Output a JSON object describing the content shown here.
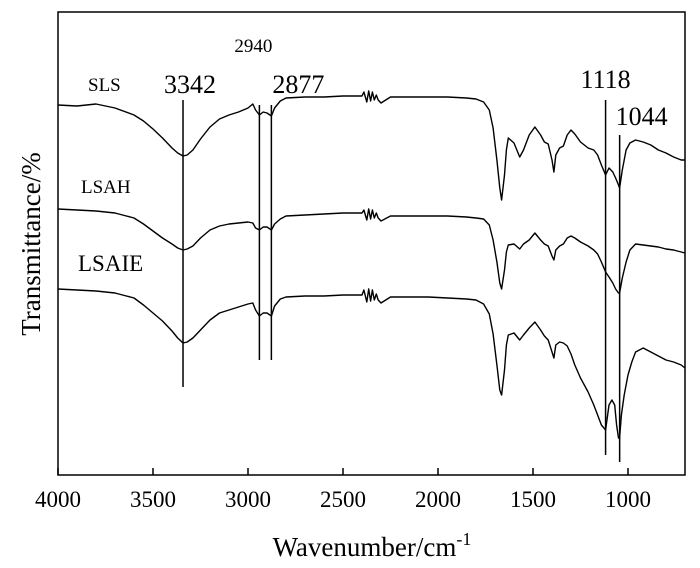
{
  "chart_data": {
    "type": "line",
    "title": "",
    "xlabel": "Wavenumber/cm",
    "xlabel_superscript": "-1",
    "ylabel": "Transmittance/%",
    "xlim": [
      4000,
      700
    ],
    "x_reversed": true,
    "x_ticks": [
      4000,
      3500,
      3000,
      2500,
      2000,
      1500,
      1000
    ],
    "y_ticks_shown": false,
    "grid": false,
    "legend": "labels placed above each curve",
    "line_color": "#000000",
    "series": [
      {
        "name": "SLS",
        "points": [
          [
            4000,
            105
          ],
          [
            3900,
            106
          ],
          [
            3800,
            104
          ],
          [
            3700,
            108
          ],
          [
            3600,
            115
          ],
          [
            3550,
            121
          ],
          [
            3500,
            129
          ],
          [
            3450,
            138
          ],
          [
            3400,
            148
          ],
          [
            3370,
            153
          ],
          [
            3342,
            156
          ],
          [
            3320,
            155
          ],
          [
            3290,
            150
          ],
          [
            3250,
            139
          ],
          [
            3200,
            127
          ],
          [
            3150,
            119
          ],
          [
            3100,
            115
          ],
          [
            3050,
            112
          ],
          [
            3000,
            108
          ],
          [
            2975,
            104
          ],
          [
            2960,
            110
          ],
          [
            2940,
            115
          ],
          [
            2920,
            112
          ],
          [
            2900,
            113
          ],
          [
            2877,
            116
          ],
          [
            2860,
            108
          ],
          [
            2830,
            101
          ],
          [
            2800,
            98
          ],
          [
            2700,
            97
          ],
          [
            2600,
            97
          ],
          [
            2500,
            96
          ],
          [
            2400,
            96
          ],
          [
            2390,
            92
          ],
          [
            2375,
            102
          ],
          [
            2365,
            91
          ],
          [
            2355,
            101
          ],
          [
            2345,
            92
          ],
          [
            2335,
            100
          ],
          [
            2325,
            95
          ],
          [
            2315,
            100
          ],
          [
            2300,
            103
          ],
          [
            2250,
            97
          ],
          [
            2150,
            97
          ],
          [
            2050,
            97
          ],
          [
            1950,
            97
          ],
          [
            1850,
            98
          ],
          [
            1800,
            99
          ],
          [
            1760,
            102
          ],
          [
            1730,
            110
          ],
          [
            1710,
            128
          ],
          [
            1690,
            160
          ],
          [
            1675,
            188
          ],
          [
            1665,
            200
          ],
          [
            1650,
            175
          ],
          [
            1640,
            150
          ],
          [
            1630,
            138
          ],
          [
            1600,
            143
          ],
          [
            1570,
            157
          ],
          [
            1550,
            150
          ],
          [
            1520,
            135
          ],
          [
            1490,
            127
          ],
          [
            1460,
            135
          ],
          [
            1440,
            142
          ],
          [
            1420,
            144
          ],
          [
            1400,
            160
          ],
          [
            1390,
            172
          ],
          [
            1380,
            155
          ],
          [
            1360,
            148
          ],
          [
            1340,
            146
          ],
          [
            1320,
            135
          ],
          [
            1300,
            130
          ],
          [
            1280,
            134
          ],
          [
            1250,
            142
          ],
          [
            1210,
            148
          ],
          [
            1180,
            150
          ],
          [
            1160,
            155
          ],
          [
            1140,
            165
          ],
          [
            1118,
            175
          ],
          [
            1100,
            168
          ],
          [
            1080,
            172
          ],
          [
            1065,
            178
          ],
          [
            1050,
            185
          ],
          [
            1044,
            188
          ],
          [
            1030,
            170
          ],
          [
            1010,
            150
          ],
          [
            990,
            143
          ],
          [
            960,
            140
          ],
          [
            920,
            142
          ],
          [
            880,
            145
          ],
          [
            840,
            150
          ],
          [
            800,
            153
          ],
          [
            760,
            157
          ],
          [
            720,
            160
          ],
          [
            700,
            160
          ]
        ]
      },
      {
        "name": "LSAH",
        "points": [
          [
            4000,
            209
          ],
          [
            3900,
            210
          ],
          [
            3800,
            211
          ],
          [
            3700,
            213
          ],
          [
            3600,
            218
          ],
          [
            3550,
            224
          ],
          [
            3500,
            231
          ],
          [
            3450,
            238
          ],
          [
            3400,
            244
          ],
          [
            3370,
            248
          ],
          [
            3342,
            250
          ],
          [
            3320,
            249
          ],
          [
            3290,
            246
          ],
          [
            3250,
            238
          ],
          [
            3200,
            230
          ],
          [
            3150,
            226
          ],
          [
            3100,
            224
          ],
          [
            3050,
            223
          ],
          [
            3000,
            222
          ],
          [
            2975,
            223
          ],
          [
            2960,
            228
          ],
          [
            2940,
            230
          ],
          [
            2920,
            227
          ],
          [
            2900,
            227
          ],
          [
            2877,
            230
          ],
          [
            2860,
            224
          ],
          [
            2830,
            219
          ],
          [
            2800,
            216
          ],
          [
            2700,
            215
          ],
          [
            2600,
            214
          ],
          [
            2500,
            213
          ],
          [
            2400,
            213
          ],
          [
            2390,
            210
          ],
          [
            2375,
            220
          ],
          [
            2365,
            209
          ],
          [
            2355,
            219
          ],
          [
            2345,
            210
          ],
          [
            2335,
            218
          ],
          [
            2325,
            213
          ],
          [
            2315,
            218
          ],
          [
            2300,
            221
          ],
          [
            2250,
            216
          ],
          [
            2150,
            216
          ],
          [
            2050,
            216
          ],
          [
            1950,
            216
          ],
          [
            1850,
            217
          ],
          [
            1800,
            218
          ],
          [
            1760,
            219
          ],
          [
            1730,
            225
          ],
          [
            1710,
            240
          ],
          [
            1690,
            262
          ],
          [
            1675,
            283
          ],
          [
            1665,
            289
          ],
          [
            1650,
            270
          ],
          [
            1640,
            252
          ],
          [
            1630,
            245
          ],
          [
            1600,
            244
          ],
          [
            1570,
            249
          ],
          [
            1550,
            244
          ],
          [
            1520,
            240
          ],
          [
            1490,
            233
          ],
          [
            1460,
            240
          ],
          [
            1440,
            244
          ],
          [
            1420,
            246
          ],
          [
            1400,
            256
          ],
          [
            1390,
            260
          ],
          [
            1380,
            250
          ],
          [
            1360,
            246
          ],
          [
            1340,
            244
          ],
          [
            1320,
            238
          ],
          [
            1300,
            236
          ],
          [
            1280,
            238
          ],
          [
            1250,
            242
          ],
          [
            1210,
            246
          ],
          [
            1180,
            250
          ],
          [
            1160,
            254
          ],
          [
            1140,
            262
          ],
          [
            1118,
            272
          ],
          [
            1100,
            277
          ],
          [
            1080,
            283
          ],
          [
            1065,
            289
          ],
          [
            1050,
            293
          ],
          [
            1044,
            293
          ],
          [
            1030,
            278
          ],
          [
            1010,
            262
          ],
          [
            990,
            250
          ],
          [
            960,
            244
          ],
          [
            920,
            245
          ],
          [
            880,
            246
          ],
          [
            840,
            247
          ],
          [
            800,
            249
          ],
          [
            760,
            250
          ],
          [
            720,
            252
          ],
          [
            700,
            253
          ]
        ]
      },
      {
        "name": "LSAIE",
        "points": [
          [
            4000,
            289
          ],
          [
            3900,
            290
          ],
          [
            3800,
            291
          ],
          [
            3700,
            293
          ],
          [
            3600,
            298
          ],
          [
            3550,
            305
          ],
          [
            3500,
            313
          ],
          [
            3450,
            321
          ],
          [
            3400,
            331
          ],
          [
            3370,
            338
          ],
          [
            3342,
            343
          ],
          [
            3320,
            342
          ],
          [
            3290,
            338
          ],
          [
            3250,
            330
          ],
          [
            3200,
            320
          ],
          [
            3150,
            313
          ],
          [
            3100,
            310
          ],
          [
            3050,
            307
          ],
          [
            3000,
            304
          ],
          [
            2975,
            303
          ],
          [
            2960,
            310
          ],
          [
            2940,
            316
          ],
          [
            2920,
            313
          ],
          [
            2900,
            313
          ],
          [
            2877,
            316
          ],
          [
            2860,
            306
          ],
          [
            2830,
            299
          ],
          [
            2800,
            297
          ],
          [
            2700,
            296
          ],
          [
            2600,
            296
          ],
          [
            2500,
            295
          ],
          [
            2400,
            295
          ],
          [
            2390,
            290
          ],
          [
            2375,
            302
          ],
          [
            2365,
            289
          ],
          [
            2355,
            301
          ],
          [
            2345,
            290
          ],
          [
            2335,
            300
          ],
          [
            2325,
            294
          ],
          [
            2315,
            300
          ],
          [
            2300,
            303
          ],
          [
            2250,
            297
          ],
          [
            2150,
            297
          ],
          [
            2050,
            297
          ],
          [
            1950,
            298
          ],
          [
            1850,
            299
          ],
          [
            1800,
            300
          ],
          [
            1760,
            304
          ],
          [
            1730,
            314
          ],
          [
            1710,
            334
          ],
          [
            1690,
            365
          ],
          [
            1675,
            390
          ],
          [
            1665,
            395
          ],
          [
            1650,
            370
          ],
          [
            1640,
            345
          ],
          [
            1630,
            335
          ],
          [
            1600,
            333
          ],
          [
            1570,
            340
          ],
          [
            1550,
            335
          ],
          [
            1520,
            328
          ],
          [
            1490,
            322
          ],
          [
            1460,
            330
          ],
          [
            1440,
            336
          ],
          [
            1420,
            340
          ],
          [
            1400,
            352
          ],
          [
            1390,
            358
          ],
          [
            1380,
            345
          ],
          [
            1360,
            342
          ],
          [
            1340,
            343
          ],
          [
            1320,
            346
          ],
          [
            1300,
            354
          ],
          [
            1280,
            365
          ],
          [
            1250,
            378
          ],
          [
            1210,
            392
          ],
          [
            1180,
            405
          ],
          [
            1160,
            415
          ],
          [
            1140,
            425
          ],
          [
            1118,
            430
          ],
          [
            1100,
            405
          ],
          [
            1085,
            400
          ],
          [
            1070,
            405
          ],
          [
            1060,
            425
          ],
          [
            1050,
            438
          ],
          [
            1044,
            438
          ],
          [
            1035,
            415
          ],
          [
            1020,
            395
          ],
          [
            1000,
            375
          ],
          [
            980,
            362
          ],
          [
            960,
            352
          ],
          [
            920,
            348
          ],
          [
            880,
            352
          ],
          [
            840,
            356
          ],
          [
            800,
            360
          ],
          [
            760,
            362
          ],
          [
            720,
            365
          ],
          [
            700,
            368
          ]
        ]
      }
    ],
    "series_label_sizes": [
      19,
      19,
      23
    ],
    "annotations": [
      {
        "label": "3342",
        "x": 3342,
        "line_from": 100,
        "line_to": 387,
        "label_size": 26
      },
      {
        "label": "2940",
        "x": 2940,
        "line_from": 105,
        "line_to": 360,
        "label_size": 19
      },
      {
        "label": "2877",
        "x": 2877,
        "line_from": 105,
        "line_to": 360,
        "label_size": 26
      },
      {
        "label": "1118",
        "x": 1118,
        "line_from": 100,
        "line_to": 455,
        "label_size": 26
      },
      {
        "label": "1044",
        "x": 1044,
        "line_from": 135,
        "line_to": 462,
        "label_size": 26
      }
    ]
  }
}
